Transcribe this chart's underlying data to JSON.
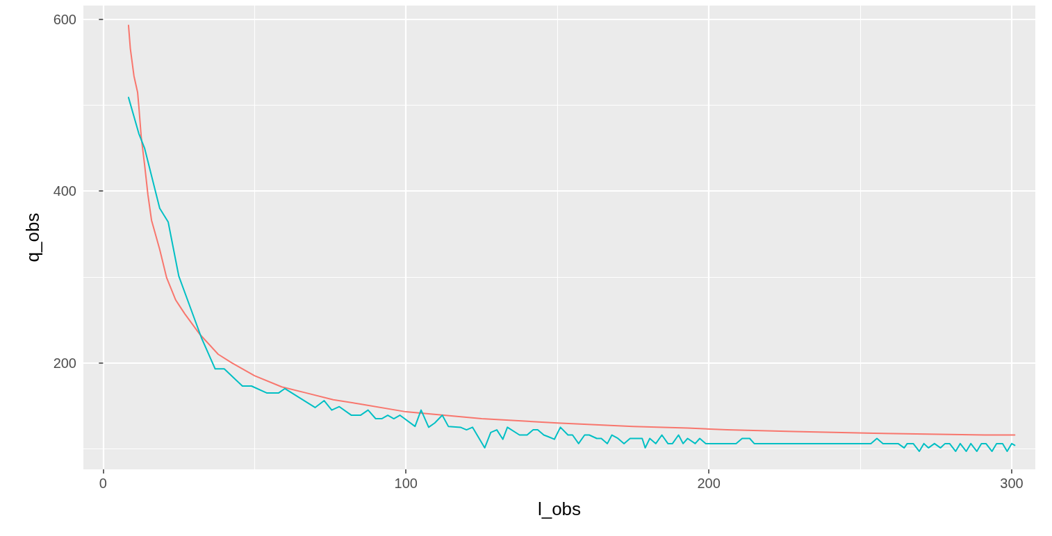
{
  "chart_data": {
    "type": "line",
    "xlabel": "l_obs",
    "ylabel": "q_obs",
    "xlim": [
      -6.5,
      307.8
    ],
    "ylim": [
      76,
      616
    ],
    "xticks": [
      0,
      {
        "value": 50,
        "label": null
      },
      100,
      {
        "value": 150,
        "label": null
      },
      200,
      {
        "value": 250,
        "label": null
      },
      300
    ],
    "yticks": [
      {
        "value": 100,
        "label": null
      },
      200,
      {
        "value": 300,
        "label": null
      },
      400,
      {
        "value": 500,
        "label": null
      },
      600
    ],
    "grid": true,
    "marker": "none",
    "line_style": "solid",
    "series": [
      {
        "color": "#f8766d",
        "x": [
          8.4,
          9,
          10.2,
          11.4,
          11.8,
          12.6,
          13.7,
          14.8,
          16,
          18.7,
          21,
          24,
          27,
          32,
          38,
          42.5,
          50,
          59,
          67,
          76,
          85,
          100,
          125,
          150,
          175,
          193,
          206,
          228,
          254.5,
          291,
          301
        ],
        "values": [
          593,
          566,
          534,
          515,
          499,
          463,
          431,
          396,
          366,
          332,
          299,
          273,
          257,
          233,
          210,
          200,
          185,
          172,
          165,
          157,
          152,
          143,
          135,
          130,
          126,
          124,
          122,
          120,
          118,
          116,
          116
        ]
      },
      {
        "color": "#00bfc4",
        "x": [
          8.4,
          11.8,
          13.7,
          18.7,
          21.5,
          25,
          32.5,
          37,
          40,
          46,
          49,
          54,
          58,
          60,
          70,
          73,
          75.5,
          78,
          82,
          85,
          87.5,
          90,
          92,
          94,
          96,
          98,
          103,
          105,
          107.5,
          109.5,
          112,
          114,
          118,
          120,
          122,
          126,
          128,
          130,
          132,
          133.5,
          137.5,
          140,
          142,
          143.5,
          145.5,
          147,
          149,
          151,
          153.5,
          155,
          157,
          159,
          160.5,
          163,
          164.5,
          166.5,
          168,
          170,
          172,
          174,
          178,
          179,
          180.5,
          182.5,
          184.5,
          186.5,
          188,
          190,
          191.5,
          193,
          195.5,
          197,
          199,
          209,
          211,
          213.5,
          215,
          253.5,
          255.5,
          257.5,
          262.5,
          264.5,
          265.5,
          267.5,
          269.5,
          271,
          272.5,
          274.5,
          276.5,
          278,
          279.5,
          281.5,
          283,
          285,
          286.5,
          288.5,
          290,
          291.5,
          293.5,
          295,
          297,
          298.5,
          300,
          301
        ],
        "values": [
          509,
          467,
          450,
          380,
          364,
          301,
          229,
          193,
          193,
          173,
          173,
          165,
          165,
          170,
          148,
          156,
          145,
          149,
          139,
          139,
          145,
          135,
          135,
          139,
          135,
          139,
          126,
          145,
          125,
          130,
          139,
          126,
          125,
          122,
          125,
          101,
          119,
          122,
          111,
          125,
          116,
          116,
          122,
          122,
          116,
          114,
          111,
          125,
          116,
          116,
          106,
          116,
          116,
          112,
          112,
          106,
          116,
          112,
          106,
          112,
          112,
          101,
          112,
          106,
          116,
          106,
          106,
          116,
          106,
          112,
          106,
          112,
          106,
          106,
          112,
          112,
          106,
          106,
          112,
          106,
          106,
          101,
          106,
          106,
          97,
          106,
          101,
          106,
          101,
          106,
          106,
          97,
          106,
          97,
          106,
          97,
          106,
          106,
          97,
          106,
          106,
          97,
          106,
          104
        ]
      }
    ]
  }
}
